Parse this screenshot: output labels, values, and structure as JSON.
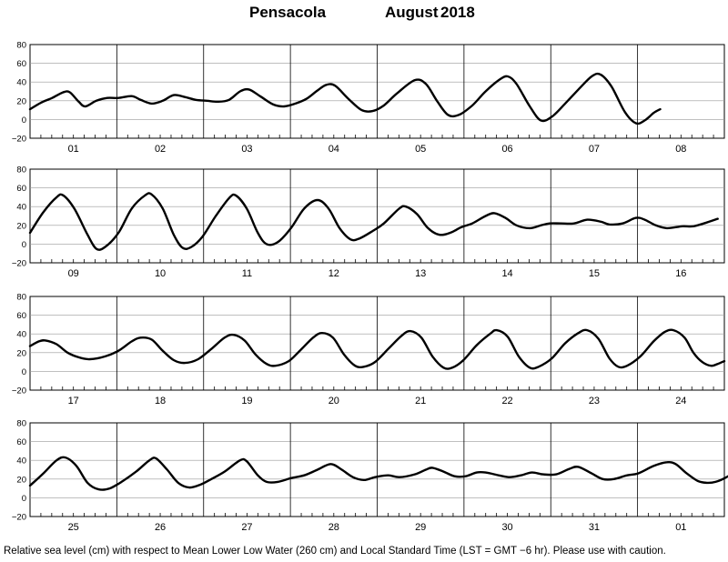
{
  "header": {
    "station": "Pensacola",
    "month": "August",
    "year": "2018"
  },
  "footer": {
    "note": "Relative sea level (cm) with respect to Mean Lower Low Water (260 cm) and Local Standard Time (LST = GMT −6 hr). Please use with caution."
  },
  "chart_data": [
    {
      "type": "line",
      "title": "",
      "xlabel": "",
      "ylabel": "",
      "ylim": [
        -20,
        80
      ],
      "y_ticks": [
        "80",
        "60",
        "40",
        "20",
        "0",
        "−20"
      ],
      "categories": [
        "01",
        "02",
        "03",
        "04",
        "05",
        "06",
        "07",
        "08"
      ],
      "series": [
        {
          "values": [
            [
              0,
              11
            ],
            [
              0.25,
              18
            ],
            [
              0.5,
              23
            ],
            [
              0.75,
              29
            ],
            [
              0.9,
              29
            ],
            [
              1.1,
              19
            ],
            [
              1.25,
              14
            ],
            [
              1.5,
              20
            ],
            [
              1.75,
              23
            ],
            [
              2.0,
              23
            ],
            [
              2.3,
              25
            ],
            [
              2.5,
              21
            ],
            [
              2.75,
              17
            ],
            [
              3.0,
              20
            ],
            [
              3.25,
              26
            ],
            [
              3.5,
              24
            ],
            [
              3.75,
              21
            ],
            [
              4.0,
              20
            ],
            [
              4.25,
              19
            ],
            [
              4.5,
              21
            ],
            [
              4.75,
              30
            ],
            [
              4.95,
              32
            ],
            [
              5.2,
              25
            ],
            [
              5.5,
              16
            ],
            [
              5.75,
              14
            ],
            [
              6.0,
              17
            ],
            [
              6.25,
              22
            ],
            [
              6.5,
              31
            ],
            [
              6.7,
              37
            ],
            [
              6.9,
              36
            ],
            [
              7.2,
              22
            ],
            [
              7.5,
              10
            ],
            [
              7.75,
              9
            ],
            [
              8.0,
              15
            ],
            [
              8.3,
              28
            ],
            [
              8.7,
              42
            ],
            [
              8.95,
              38
            ],
            [
              9.2,
              20
            ],
            [
              9.45,
              5
            ],
            [
              9.7,
              5
            ],
            [
              10.0,
              15
            ],
            [
              10.3,
              30
            ],
            [
              10.6,
              42
            ],
            [
              10.8,
              46
            ],
            [
              11.0,
              38
            ],
            [
              11.3,
              14
            ],
            [
              11.55,
              -1
            ],
            [
              11.8,
              3
            ],
            [
              12.1,
              17
            ],
            [
              12.4,
              32
            ],
            [
              12.7,
              46
            ],
            [
              12.9,
              48
            ],
            [
              13.15,
              35
            ],
            [
              13.45,
              8
            ],
            [
              13.7,
              -4
            ],
            [
              13.9,
              -1
            ],
            [
              14.1,
              7
            ],
            [
              14.25,
              11
            ]
          ]
        }
      ]
    },
    {
      "type": "line",
      "title": "",
      "xlabel": "",
      "ylabel": "",
      "ylim": [
        -20,
        80
      ],
      "y_ticks": [
        "80",
        "60",
        "40",
        "20",
        "0",
        "−20"
      ],
      "categories": [
        "09",
        "10",
        "11",
        "12",
        "13",
        "14",
        "15",
        "16"
      ],
      "series": [
        {
          "values": [
            [
              0,
              12
            ],
            [
              0.3,
              34
            ],
            [
              0.6,
              50
            ],
            [
              0.75,
              52
            ],
            [
              1.0,
              38
            ],
            [
              1.3,
              10
            ],
            [
              1.5,
              -5
            ],
            [
              1.7,
              -3
            ],
            [
              2.0,
              12
            ],
            [
              2.3,
              38
            ],
            [
              2.6,
              52
            ],
            [
              2.75,
              53
            ],
            [
              3.0,
              38
            ],
            [
              3.25,
              10
            ],
            [
              3.45,
              -4
            ],
            [
              3.65,
              -3
            ],
            [
              3.9,
              8
            ],
            [
              4.2,
              30
            ],
            [
              4.5,
              49
            ],
            [
              4.65,
              52
            ],
            [
              4.9,
              38
            ],
            [
              5.15,
              12
            ],
            [
              5.35,
              0
            ],
            [
              5.6,
              2
            ],
            [
              5.9,
              17
            ],
            [
              6.2,
              38
            ],
            [
              6.5,
              47
            ],
            [
              6.75,
              38
            ],
            [
              7.0,
              17
            ],
            [
              7.25,
              5
            ],
            [
              7.45,
              6
            ],
            [
              7.75,
              14
            ],
            [
              8.0,
              22
            ],
            [
              8.35,
              38
            ],
            [
              8.5,
              40
            ],
            [
              8.75,
              32
            ],
            [
              9.0,
              17
            ],
            [
              9.25,
              10
            ],
            [
              9.5,
              12
            ],
            [
              9.75,
              18
            ],
            [
              10.0,
              22
            ],
            [
              10.3,
              30
            ],
            [
              10.5,
              33
            ],
            [
              10.75,
              28
            ],
            [
              11.0,
              20
            ],
            [
              11.3,
              17
            ],
            [
              11.55,
              20
            ],
            [
              11.75,
              22
            ],
            [
              12.0,
              22
            ],
            [
              12.3,
              22
            ],
            [
              12.6,
              26
            ],
            [
              12.9,
              24
            ],
            [
              13.1,
              21
            ],
            [
              13.4,
              22
            ],
            [
              13.7,
              28
            ],
            [
              13.9,
              26
            ],
            [
              14.15,
              20
            ],
            [
              14.4,
              17
            ],
            [
              14.75,
              19
            ],
            [
              15.0,
              19
            ],
            [
              15.3,
              23
            ],
            [
              15.55,
              27
            ]
          ]
        }
      ]
    },
    {
      "type": "line",
      "title": "",
      "xlabel": "",
      "ylabel": "",
      "ylim": [
        -20,
        80
      ],
      "y_ticks": [
        "80",
        "60",
        "40",
        "20",
        "0",
        "−20"
      ],
      "categories": [
        "17",
        "18",
        "19",
        "20",
        "21",
        "22",
        "23",
        "24"
      ],
      "series": [
        {
          "values": [
            [
              0,
              27
            ],
            [
              0.2,
              32
            ],
            [
              0.35,
              33
            ],
            [
              0.6,
              29
            ],
            [
              0.85,
              20
            ],
            [
              1.1,
              15
            ],
            [
              1.35,
              13
            ],
            [
              1.7,
              16
            ],
            [
              2.0,
              22
            ],
            [
              2.3,
              32
            ],
            [
              2.5,
              36
            ],
            [
              2.75,
              34
            ],
            [
              3.0,
              22
            ],
            [
              3.25,
              12
            ],
            [
              3.5,
              9
            ],
            [
              3.8,
              13
            ],
            [
              4.1,
              24
            ],
            [
              4.4,
              36
            ],
            [
              4.6,
              39
            ],
            [
              4.85,
              33
            ],
            [
              5.1,
              18
            ],
            [
              5.35,
              8
            ],
            [
              5.55,
              6
            ],
            [
              5.85,
              11
            ],
            [
              6.1,
              22
            ],
            [
              6.4,
              36
            ],
            [
              6.6,
              41
            ],
            [
              6.85,
              36
            ],
            [
              7.1,
              18
            ],
            [
              7.35,
              6
            ],
            [
              7.55,
              5
            ],
            [
              7.8,
              10
            ],
            [
              8.1,
              24
            ],
            [
              8.4,
              38
            ],
            [
              8.6,
              43
            ],
            [
              8.85,
              36
            ],
            [
              9.1,
              16
            ],
            [
              9.35,
              4
            ],
            [
              9.55,
              4
            ],
            [
              9.8,
              12
            ],
            [
              10.1,
              28
            ],
            [
              10.4,
              40
            ],
            [
              10.55,
              44
            ],
            [
              10.8,
              37
            ],
            [
              11.05,
              16
            ],
            [
              11.3,
              4
            ],
            [
              11.5,
              5
            ],
            [
              11.8,
              14
            ],
            [
              12.1,
              30
            ],
            [
              12.4,
              41
            ],
            [
              12.6,
              44
            ],
            [
              12.85,
              35
            ],
            [
              13.1,
              14
            ],
            [
              13.3,
              5
            ],
            [
              13.5,
              6
            ],
            [
              13.8,
              16
            ],
            [
              14.1,
              32
            ],
            [
              14.35,
              42
            ],
            [
              14.55,
              44
            ],
            [
              14.8,
              36
            ],
            [
              15.0,
              20
            ],
            [
              15.2,
              10
            ],
            [
              15.4,
              6
            ],
            [
              15.55,
              8
            ],
            [
              15.7,
              11
            ]
          ]
        }
      ]
    },
    {
      "type": "line",
      "title": "",
      "xlabel": "",
      "ylabel": "",
      "ylim": [
        -20,
        80
      ],
      "y_ticks": [
        "80",
        "60",
        "40",
        "20",
        "0",
        "−20"
      ],
      "categories": [
        "25",
        "26",
        "27",
        "28",
        "29",
        "30",
        "31",
        "01"
      ],
      "series": [
        {
          "values": [
            [
              0,
              13
            ],
            [
              0.3,
              26
            ],
            [
              0.6,
              40
            ],
            [
              0.8,
              43
            ],
            [
              1.05,
              34
            ],
            [
              1.3,
              16
            ],
            [
              1.55,
              9
            ],
            [
              1.8,
              10
            ],
            [
              2.1,
              18
            ],
            [
              2.4,
              28
            ],
            [
              2.7,
              40
            ],
            [
              2.85,
              42
            ],
            [
              3.1,
              30
            ],
            [
              3.35,
              16
            ],
            [
              3.6,
              11
            ],
            [
              3.85,
              14
            ],
            [
              4.1,
              20
            ],
            [
              4.4,
              28
            ],
            [
              4.75,
              40
            ],
            [
              4.9,
              39
            ],
            [
              5.15,
              24
            ],
            [
              5.35,
              17
            ],
            [
              5.6,
              17
            ],
            [
              5.9,
              21
            ],
            [
              6.2,
              24
            ],
            [
              6.5,
              30
            ],
            [
              6.8,
              36
            ],
            [
              7.05,
              30
            ],
            [
              7.3,
              22
            ],
            [
              7.55,
              19
            ],
            [
              7.8,
              22
            ],
            [
              8.1,
              24
            ],
            [
              8.35,
              22
            ],
            [
              8.7,
              25
            ],
            [
              8.95,
              30
            ],
            [
              9.1,
              32
            ],
            [
              9.35,
              28
            ],
            [
              9.6,
              23
            ],
            [
              9.85,
              23
            ],
            [
              10.1,
              27
            ],
            [
              10.3,
              27
            ],
            [
              10.6,
              24
            ],
            [
              10.85,
              22
            ],
            [
              11.1,
              24
            ],
            [
              11.35,
              27
            ],
            [
              11.6,
              25
            ],
            [
              11.9,
              25
            ],
            [
              12.2,
              31
            ],
            [
              12.4,
              33
            ],
            [
              12.7,
              26
            ],
            [
              12.95,
              20
            ],
            [
              13.2,
              20
            ],
            [
              13.5,
              24
            ],
            [
              13.75,
              26
            ],
            [
              14.1,
              34
            ],
            [
              14.4,
              38
            ],
            [
              14.6,
              36
            ],
            [
              14.85,
              26
            ],
            [
              15.1,
              18
            ],
            [
              15.3,
              16
            ],
            [
              15.5,
              17
            ],
            [
              15.75,
              22
            ],
            [
              16.0,
              30
            ],
            [
              16.2,
              36
            ]
          ]
        }
      ]
    }
  ]
}
